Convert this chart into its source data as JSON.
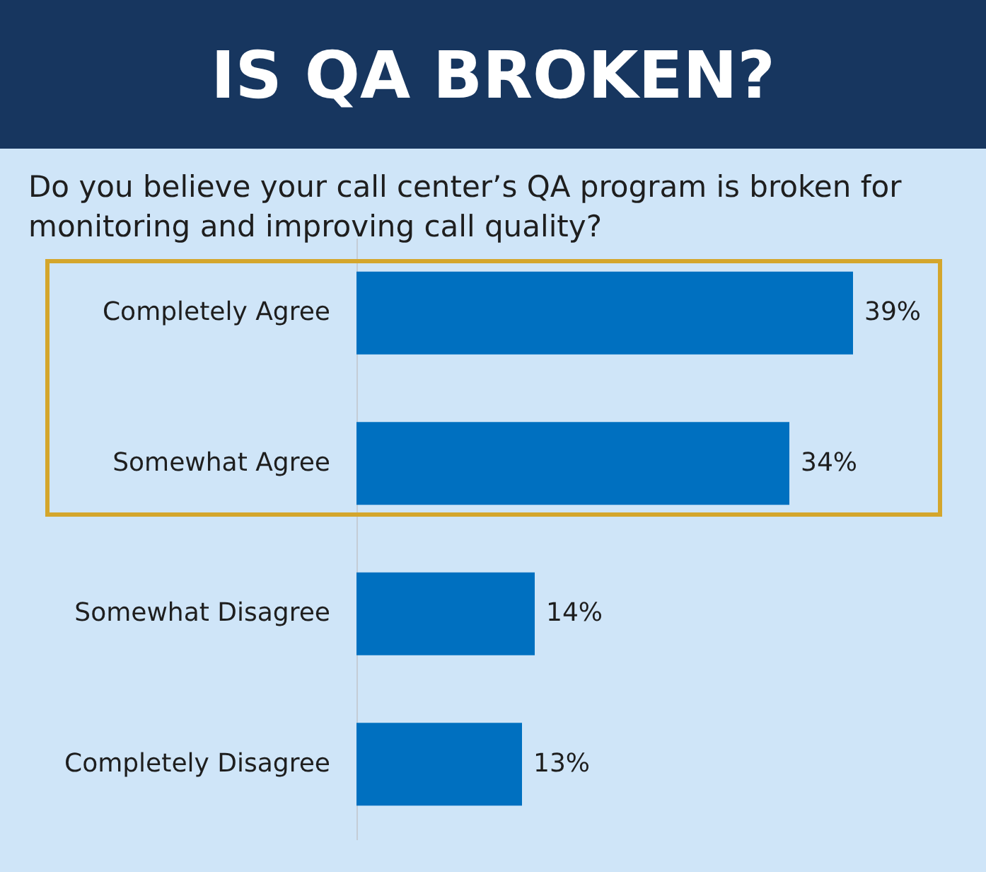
{
  "chart_data": {
    "type": "bar",
    "orientation": "horizontal",
    "title": "IS QA BROKEN?",
    "subtitle": "Do you believe your call center’s QA program is broken for monitoring and improving call quality?",
    "categories": [
      "Completely Agree",
      "Somewhat Agree",
      "Somewhat Disagree",
      "Completely Disagree"
    ],
    "values": [
      39,
      34,
      14,
      13
    ],
    "value_labels": [
      "39%",
      "34%",
      "14%",
      "13%"
    ],
    "color": "#0070c0"
  }
}
